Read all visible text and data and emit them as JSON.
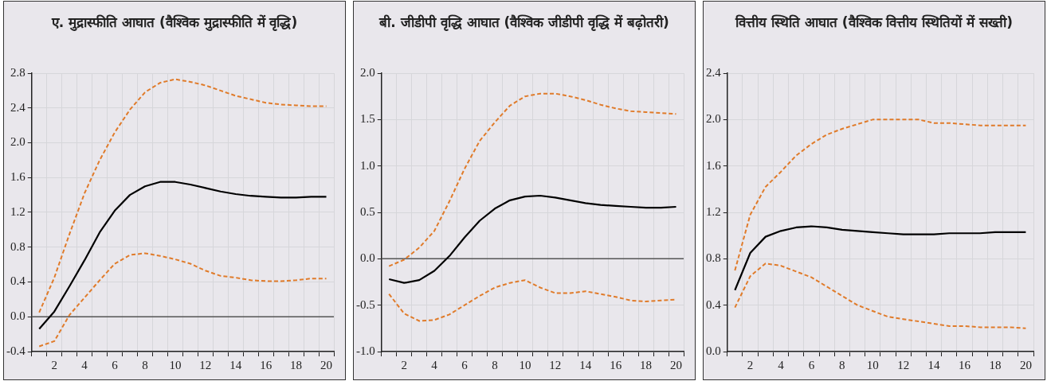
{
  "chart_data": [
    {
      "type": "line",
      "title": "ए. मुद्रास्फीति आघात (वैश्विक मुद्रास्फीति में वृद्धि)",
      "categories": [
        null,
        "2",
        null,
        "4",
        null,
        "6",
        null,
        "8",
        null,
        "10",
        null,
        "12",
        null,
        "14",
        null,
        "16",
        null,
        "18",
        null,
        "20"
      ],
      "ylim": [
        -0.4,
        2.8
      ],
      "yticks": [
        -0.4,
        {
          "value": 0,
          "label": "0.0"
        },
        0.4,
        0.8,
        1.2,
        1.6,
        {
          "value": 2,
          "label": "2.0"
        },
        2.4,
        2.8
      ],
      "grid": true,
      "legend": false,
      "marker": "none",
      "ref_lines": [
        {
          "axis": "y",
          "value": 0,
          "color": "#555555"
        }
      ],
      "series": [
        {
          "color": "#e07b2a",
          "line_style": "dashed",
          "values": [
            0.05,
            0.45,
            0.95,
            1.42,
            1.8,
            2.12,
            2.38,
            2.58,
            2.69,
            2.73,
            2.7,
            2.66,
            2.6,
            2.54,
            2.5,
            2.46,
            2.44,
            2.43,
            2.42,
            2.42
          ]
        },
        {
          "color": "#000000",
          "line_style": "solid",
          "values": [
            -0.14,
            0.06,
            0.35,
            0.65,
            0.97,
            1.22,
            1.4,
            1.5,
            1.55,
            1.55,
            1.52,
            1.48,
            1.44,
            1.41,
            1.39,
            1.38,
            1.37,
            1.37,
            1.38,
            1.38
          ]
        },
        {
          "color": "#e07b2a",
          "line_style": "dashed",
          "values": [
            -0.34,
            -0.28,
            0.02,
            0.22,
            0.42,
            0.61,
            0.71,
            0.73,
            0.7,
            0.66,
            0.61,
            0.53,
            0.47,
            0.45,
            0.42,
            0.41,
            0.41,
            0.42,
            0.44,
            0.44
          ]
        }
      ]
    },
    {
      "type": "line",
      "title": "बी. जीडीपी वृद्धि आघात (वैश्विक जीडीपी वृद्धि में बढ़ोतरी)",
      "categories": [
        null,
        "2",
        null,
        "4",
        null,
        "6",
        null,
        "8",
        null,
        "10",
        null,
        "12",
        null,
        "14",
        null,
        "16",
        null,
        "18",
        null,
        "20"
      ],
      "ylim": [
        -1,
        2
      ],
      "yticks": [
        {
          "value": -1,
          "label": "-1.0"
        },
        -0.5,
        {
          "value": 0,
          "label": "0.0"
        },
        0.5,
        {
          "value": 1,
          "label": "1.0"
        },
        1.5,
        {
          "value": 2,
          "label": "2.0"
        }
      ],
      "grid": true,
      "legend": false,
      "marker": "none",
      "ref_lines": [
        {
          "axis": "y",
          "value": 0,
          "color": "#555555"
        }
      ],
      "series": [
        {
          "color": "#e07b2a",
          "line_style": "dashed",
          "values": [
            -0.08,
            -0.01,
            0.12,
            0.3,
            0.62,
            0.97,
            1.27,
            1.47,
            1.65,
            1.75,
            1.78,
            1.78,
            1.75,
            1.71,
            1.66,
            1.62,
            1.59,
            1.58,
            1.57,
            1.56
          ]
        },
        {
          "color": "#000000",
          "line_style": "solid",
          "values": [
            -0.22,
            -0.26,
            -0.23,
            -0.13,
            0.03,
            0.23,
            0.41,
            0.54,
            0.63,
            0.67,
            0.68,
            0.66,
            0.63,
            0.6,
            0.58,
            0.57,
            0.56,
            0.55,
            0.55,
            0.56
          ]
        },
        {
          "color": "#e07b2a",
          "line_style": "dashed",
          "values": [
            -0.38,
            -0.59,
            -0.67,
            -0.66,
            -0.6,
            -0.5,
            -0.4,
            -0.31,
            -0.26,
            -0.23,
            -0.31,
            -0.37,
            -0.37,
            -0.35,
            -0.38,
            -0.41,
            -0.45,
            -0.46,
            -0.45,
            -0.44
          ]
        }
      ]
    },
    {
      "type": "line",
      "title": "वित्तीय स्थिति आघात (वैश्विक वित्तीय स्थितियों में सख्ती)",
      "categories": [
        null,
        "2",
        null,
        "4",
        null,
        "6",
        null,
        "8",
        null,
        "10",
        null,
        "12",
        null,
        "14",
        null,
        "16",
        null,
        "18",
        null,
        "20"
      ],
      "ylim": [
        0,
        2.4
      ],
      "yticks": [
        {
          "value": 0,
          "label": "0.0"
        },
        0.4,
        0.8,
        1.2,
        1.6,
        {
          "value": 2,
          "label": "2.0"
        },
        2.4
      ],
      "grid": true,
      "legend": false,
      "marker": "none",
      "series": [
        {
          "color": "#e07b2a",
          "line_style": "dashed",
          "values": [
            0.7,
            1.18,
            1.42,
            1.55,
            1.69,
            1.79,
            1.87,
            1.92,
            1.96,
            2.0,
            2.0,
            2.0,
            2.0,
            1.97,
            1.97,
            1.96,
            1.95,
            1.95,
            1.95,
            1.95
          ]
        },
        {
          "color": "#000000",
          "line_style": "solid",
          "values": [
            0.53,
            0.85,
            0.99,
            1.04,
            1.07,
            1.08,
            1.07,
            1.05,
            1.04,
            1.03,
            1.02,
            1.01,
            1.01,
            1.01,
            1.02,
            1.02,
            1.02,
            1.03,
            1.03,
            1.03
          ]
        },
        {
          "color": "#e07b2a",
          "line_style": "dashed",
          "values": [
            0.38,
            0.65,
            0.76,
            0.74,
            0.69,
            0.64,
            0.56,
            0.48,
            0.4,
            0.35,
            0.3,
            0.28,
            0.26,
            0.24,
            0.22,
            0.22,
            0.21,
            0.21,
            0.21,
            0.2
          ]
        }
      ]
    }
  ]
}
